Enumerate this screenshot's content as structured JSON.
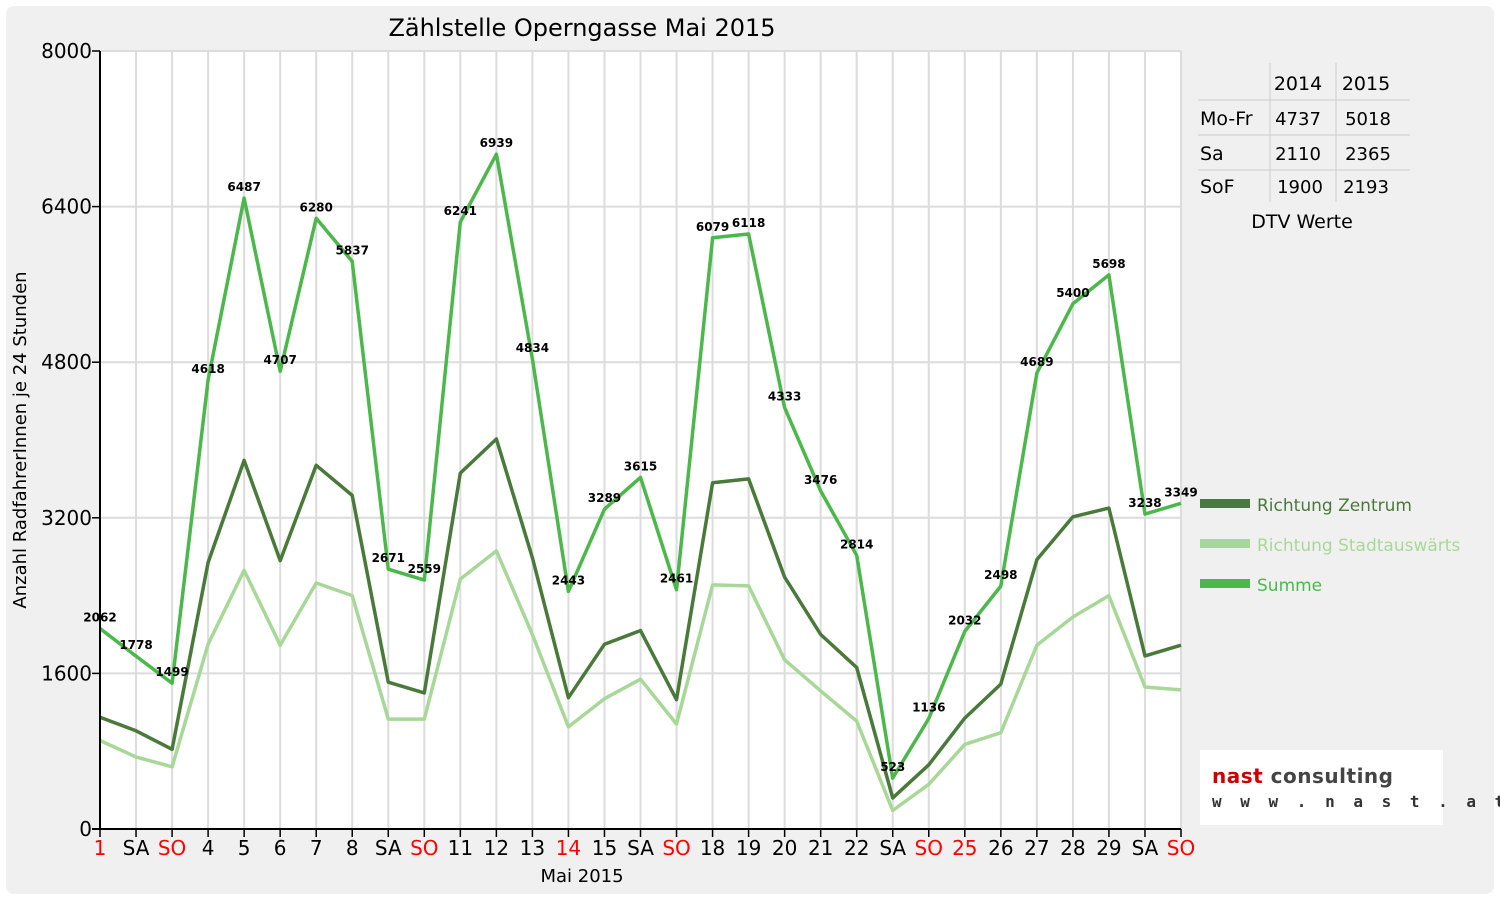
{
  "chart_data": {
    "type": "line",
    "title": "Zählstelle Operngasse Mai 2015",
    "xlabel": "Mai 2015",
    "ylabel": "Anzahl RadfahrerInnen je 24 Stunden",
    "ylim": [
      0,
      8000
    ],
    "yticks": [
      "0",
      "1600",
      "3200",
      "4800",
      "6400",
      "8000"
    ],
    "categories": [
      "1",
      "SA",
      "SO",
      "4",
      "5",
      "6",
      "7",
      "8",
      "SA",
      "SO",
      "11",
      "12",
      "13",
      "14",
      "15",
      "SA",
      "SO",
      "18",
      "19",
      "20",
      "21",
      "22",
      "SA",
      "SO",
      "25",
      "26",
      "27",
      "28",
      "29",
      "SA",
      "SO"
    ],
    "red_categories": [
      0,
      2,
      9,
      13,
      16,
      23,
      24,
      30
    ],
    "grid": true,
    "legend_position": "right",
    "series": [
      {
        "name": "Richtung Zentrum",
        "color": "#4a7a3a",
        "values": [
          1150,
          1010,
          820,
          2740,
          3790,
          2760,
          3740,
          3430,
          1510,
          1400,
          3660,
          4010,
          2790,
          1350,
          1900,
          2040,
          1330,
          3560,
          3600,
          2590,
          2000,
          1660,
          320,
          660,
          1140,
          1490,
          2770,
          3210,
          3300,
          1780,
          1890
        ]
      },
      {
        "name": "Richtung Stadtauswärts",
        "color": "#a8d898",
        "values": [
          910,
          740,
          640,
          1900,
          2660,
          1890,
          2530,
          2400,
          1130,
          1130,
          2570,
          2860,
          2000,
          1050,
          1340,
          1540,
          1080,
          2510,
          2500,
          1740,
          1420,
          1110,
          190,
          460,
          870,
          990,
          1890,
          2180,
          2400,
          1460,
          1430
        ]
      },
      {
        "name": "Summe",
        "color": "#4cb84c",
        "values": [
          2062,
          1778,
          1499,
          4618,
          6487,
          4707,
          6280,
          5837,
          2671,
          2559,
          6241,
          6939,
          4834,
          2443,
          3289,
          3615,
          2461,
          6079,
          6118,
          4333,
          3476,
          2814,
          523,
          1136,
          2032,
          2498,
          4689,
          5400,
          5698,
          3238,
          3349
        ],
        "labels": [
          "2062",
          "1778",
          "1499",
          "4618",
          "6487",
          "4707",
          "6280",
          "5837",
          "2671",
          "2559",
          "6241",
          "6939",
          "4834",
          "2443",
          "3289",
          "3615",
          "2461",
          "6079",
          "6118",
          "4333",
          "3476",
          "2814",
          "523",
          "1136",
          "2032",
          "2498",
          "4689",
          "5400",
          "5698",
          "3238",
          "3349"
        ]
      }
    ]
  },
  "dtv_table": {
    "caption": "DTV Werte",
    "columns": [
      "2014",
      "2015"
    ],
    "rows": [
      {
        "label": "Mo-Fr",
        "v2014": "4737",
        "v2015": "5018"
      },
      {
        "label": "Sa",
        "v2014": "2110",
        "v2015": "2365"
      },
      {
        "label": "SoF",
        "v2014": "1900",
        "v2015": "2193"
      }
    ]
  },
  "logo": {
    "word1": "nast",
    "word2": "consulting",
    "url": "w w w . n a s t . a t"
  }
}
